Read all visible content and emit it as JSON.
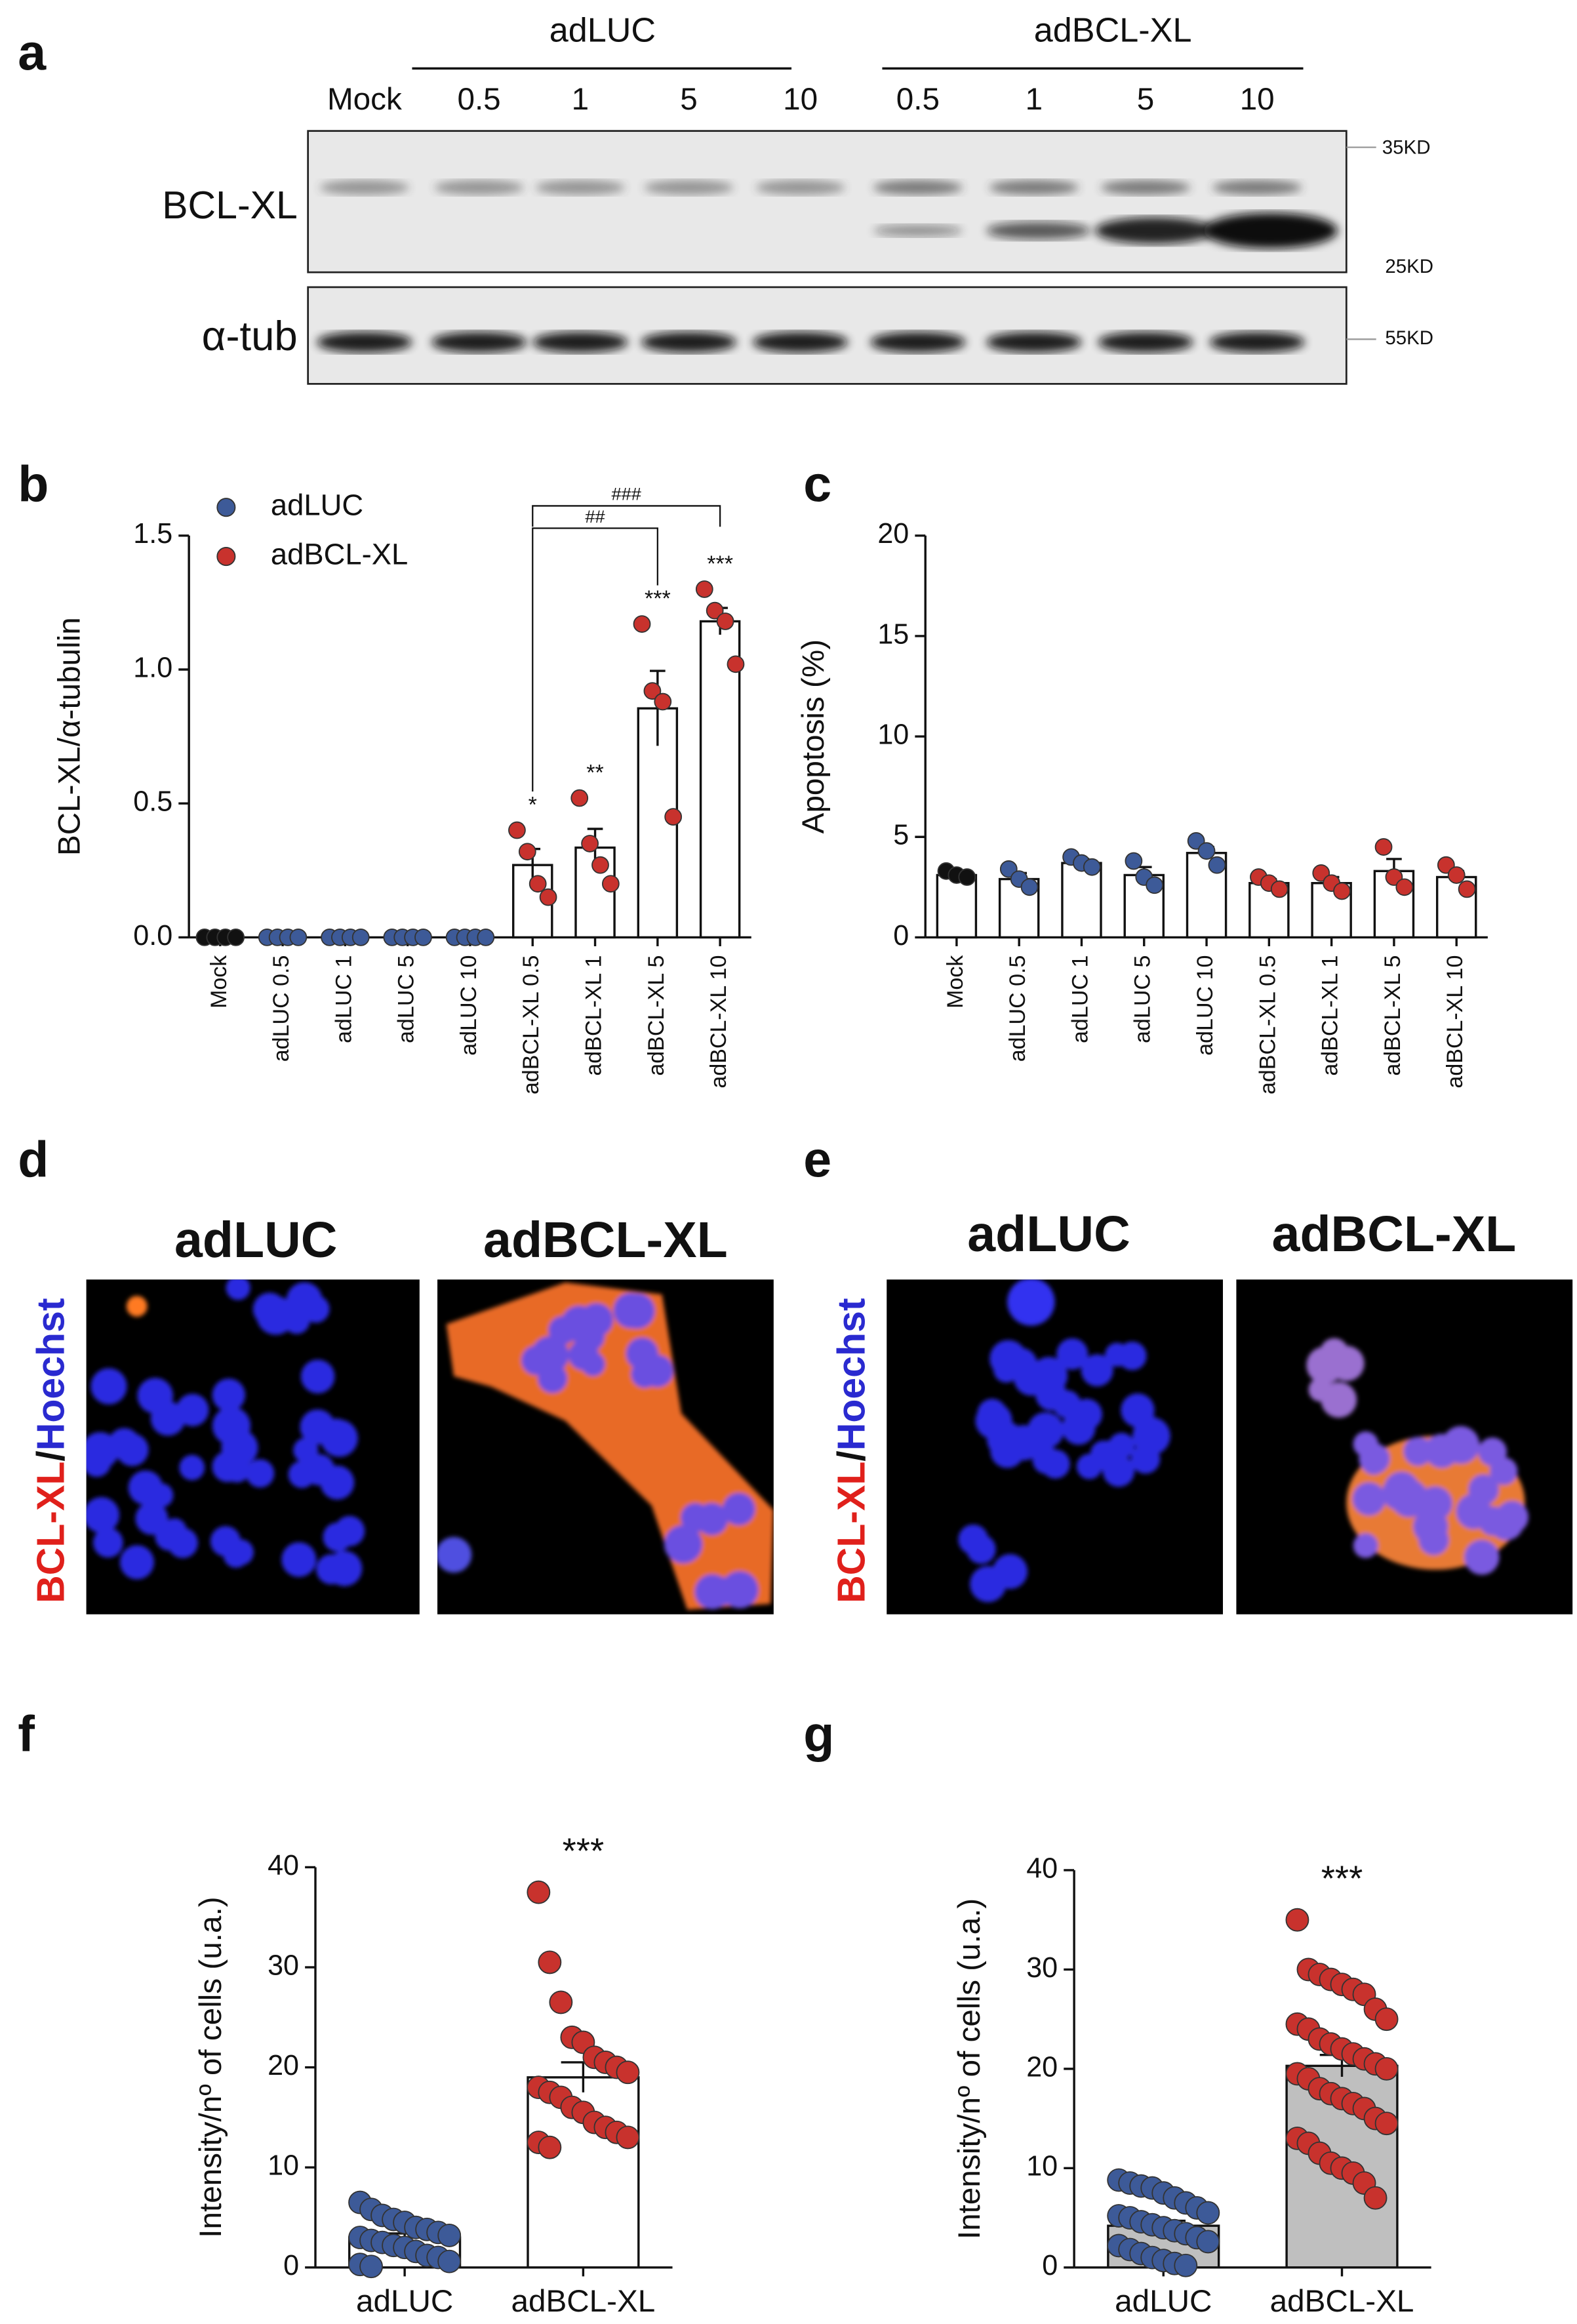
{
  "blot": {
    "label": "a",
    "groups": [
      "adLUC",
      "adBCL-XL"
    ],
    "lanes": [
      "Mock",
      "0.5",
      "1",
      "5",
      "10",
      "0.5",
      "1",
      "5",
      "10"
    ],
    "rows": [
      "BCL-XL",
      "α-tub"
    ],
    "markers": [
      "35KD",
      "25KD",
      "55KD"
    ]
  },
  "chart_data": [
    {
      "type": "bar",
      "label": "b",
      "ylabel": "BCL-XL/α-tubulin",
      "categories": [
        "Mock",
        "adLUC 0.5",
        "adLUC 1",
        "adLUC 5",
        "adLUC 10",
        "adBCL-XL 0.5",
        "adBCL-XL 1",
        "adBCL-XL 5",
        "adBCL-XL 10"
      ],
      "values": [
        0,
        0,
        0,
        0,
        0,
        0.27,
        0.335,
        0.855,
        1.18
      ],
      "errors": [
        0,
        0,
        0,
        0,
        0,
        0.06,
        0.07,
        0.14,
        0.05
      ],
      "points": [
        [
          0,
          0,
          0,
          0
        ],
        [
          0,
          0,
          0,
          0
        ],
        [
          0,
          0,
          0,
          0
        ],
        [
          0,
          0,
          0,
          0
        ],
        [
          0,
          0,
          0,
          0
        ],
        [
          0.4,
          0.32,
          0.2,
          0.15
        ],
        [
          0.52,
          0.35,
          0.27,
          0.2
        ],
        [
          1.17,
          0.92,
          0.88,
          0.45
        ],
        [
          1.3,
          1.22,
          1.18,
          1.02
        ]
      ],
      "colors": [
        "#111111",
        "#3d5a98",
        "#3d5a98",
        "#3d5a98",
        "#3d5a98",
        "#c8322d",
        "#c8322d",
        "#c8322d",
        "#c8322d"
      ],
      "bar_color": "#ffffff",
      "legend": [
        {
          "name": "adLUC",
          "color": "#3d5a98"
        },
        {
          "name": "adBCL-XL",
          "color": "#c8322d"
        }
      ],
      "ylim": [
        0,
        1.5
      ],
      "yticks": [
        {
          "value": 0,
          "label": "0.0"
        },
        0.5,
        {
          "value": 1,
          "label": "1.0"
        },
        1.5
      ],
      "stars": [
        {
          "index": 5,
          "label": "*"
        },
        {
          "index": 6,
          "label": "**"
        },
        {
          "index": 7,
          "label": "***"
        },
        {
          "index": 8,
          "label": "***"
        }
      ],
      "brackets": [
        {
          "from": 5,
          "to": 7,
          "label": "##"
        },
        {
          "from": 5,
          "to": 8,
          "label": "###"
        }
      ]
    },
    {
      "type": "bar",
      "label": "c",
      "ylabel": "Apoptosis (%)",
      "categories": [
        "Mock",
        "adLUC 0.5",
        "adLUC 1",
        "adLUC 5",
        "adLUC 10",
        "adBCL-XL 0.5",
        "adBCL-XL 1",
        "adBCL-XL 5",
        "adBCL-XL 10"
      ],
      "values": [
        3.1,
        2.9,
        3.7,
        3.1,
        4.2,
        2.7,
        2.7,
        3.3,
        3.0
      ],
      "errors": [
        0.2,
        0.3,
        0.2,
        0.4,
        0.3,
        0.2,
        0.3,
        0.6,
        0.3
      ],
      "points": [
        [
          3.3,
          3.1,
          3.0
        ],
        [
          3.4,
          2.9,
          2.5
        ],
        [
          4.0,
          3.7,
          3.5
        ],
        [
          3.8,
          3.0,
          2.6
        ],
        [
          4.8,
          4.3,
          3.6
        ],
        [
          3.0,
          2.7,
          2.4
        ],
        [
          3.2,
          2.7,
          2.3
        ],
        [
          4.5,
          3.0,
          2.5
        ],
        [
          3.6,
          3.1,
          2.4
        ]
      ],
      "colors": [
        "#111111",
        "#3d5a98",
        "#3d5a98",
        "#3d5a98",
        "#3d5a98",
        "#c8322d",
        "#c8322d",
        "#c8322d",
        "#c8322d"
      ],
      "bar_color": "#ffffff",
      "ylim": [
        0,
        20
      ],
      "yticks": [
        0,
        5,
        10,
        15,
        20
      ]
    },
    {
      "type": "bar",
      "label": "f",
      "ylabel": "Intensity/nº of cells (u.a.)",
      "categories": [
        "adLUC",
        "adBCL-XL"
      ],
      "values": [
        3.0,
        19.0
      ],
      "errors": [
        0.4,
        1.5
      ],
      "points": [
        [
          6.5,
          5.8,
          5.2,
          4.8,
          4.5,
          4.0,
          3.8,
          3.5,
          3.2,
          3.0,
          2.7,
          2.5,
          2.2,
          2.0,
          1.6,
          1.2,
          1.0,
          0.6,
          0.3,
          0.1
        ],
        [
          37.5,
          30.5,
          26.5,
          23,
          22.5,
          21,
          20.5,
          20,
          19.5,
          18,
          17.5,
          17,
          16,
          15.5,
          14.5,
          14,
          13.5,
          13,
          12.5,
          12
        ]
      ],
      "colors": [
        "#3d5a98",
        "#c8322d"
      ],
      "bar_color": "#ffffff",
      "ylim": [
        0,
        40
      ],
      "yticks": [
        0,
        10,
        20,
        30,
        40
      ],
      "stars": [
        {
          "index": 1,
          "label": "***"
        }
      ]
    },
    {
      "type": "bar",
      "label": "g",
      "ylabel": "Intensity/nº of cells (u.a.)",
      "categories": [
        "adLUC",
        "adBCL-XL"
      ],
      "values": [
        4.2,
        20.3
      ],
      "errors": [
        0.5,
        1.1
      ],
      "points": [
        [
          8.8,
          8.5,
          8.2,
          8.0,
          7.5,
          7.0,
          6.5,
          6.0,
          5.5,
          5.2,
          5.0,
          4.6,
          4.3,
          4.0,
          3.7,
          3.4,
          3.0,
          2.6,
          2.2,
          1.8,
          1.4,
          1.0,
          0.7,
          0.4,
          0.2
        ],
        [
          35,
          30,
          29.5,
          29,
          28.5,
          28,
          27.5,
          26,
          25,
          24.5,
          24,
          23,
          22.5,
          22,
          21.5,
          21,
          20.5,
          20,
          19.5,
          19,
          18,
          17.5,
          17,
          16.5,
          16,
          15,
          14.5,
          13,
          12.5,
          11.5,
          10.5,
          10,
          9.5,
          8.5,
          7
        ]
      ],
      "colors": [
        "#3d5a98",
        "#c8322d"
      ],
      "bar_color": "#bfbfbf",
      "ylim": [
        0,
        40
      ],
      "yticks": [
        0,
        10,
        20,
        30,
        40
      ],
      "stars": [
        {
          "index": 1,
          "label": "***"
        }
      ]
    }
  ],
  "micrographs": [
    {
      "label": "d",
      "titles": [
        "adLUC",
        "adBCL-XL"
      ],
      "stain": [
        "BCL-XL",
        "/",
        "Hoechst"
      ]
    },
    {
      "label": "e",
      "titles": [
        "adLUC",
        "adBCL-XL"
      ],
      "stain": [
        "BCL-XL",
        "/",
        "Hoechst"
      ]
    }
  ]
}
